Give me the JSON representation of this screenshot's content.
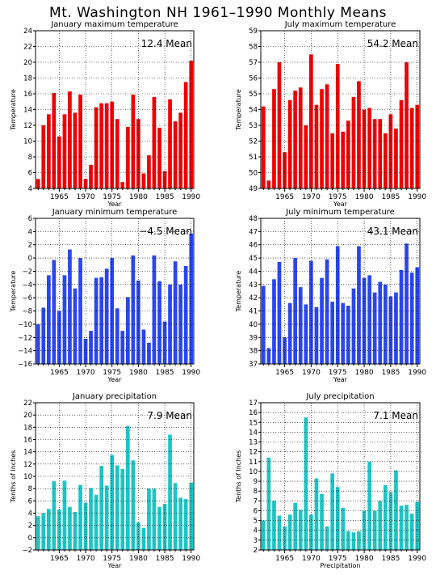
{
  "title": "Mt. Washington NH  1961–1990 Monthly Means",
  "colors": {
    "max": "#ee0000",
    "min": "#2a46ee",
    "precip": "#1ec4c4",
    "grid": "#000000"
  },
  "chart_data": [
    {
      "type": "bar",
      "title": "January maximum temperature",
      "xlabel": "Year",
      "ylabel": "Temperature",
      "mean_label": "12.4 Mean",
      "color": "#ee0000",
      "grid": true,
      "xlim": [
        1960.5,
        1990.5
      ],
      "ylim": [
        4,
        24
      ],
      "ytick_step": 2,
      "xticks": [
        1965,
        1970,
        1975,
        1980,
        1985,
        1990
      ],
      "years": [
        1961,
        1962,
        1963,
        1964,
        1965,
        1966,
        1967,
        1968,
        1969,
        1970,
        1971,
        1972,
        1973,
        1974,
        1975,
        1976,
        1977,
        1978,
        1979,
        1980,
        1981,
        1982,
        1983,
        1984,
        1985,
        1986,
        1987,
        1988,
        1989,
        1990
      ],
      "values": [
        5.2,
        12.0,
        13.4,
        16.1,
        10.6,
        13.4,
        16.3,
        13.6,
        15.9,
        5.2,
        7.0,
        14.3,
        14.8,
        14.8,
        15.0,
        12.8,
        4.8,
        11.8,
        15.9,
        12.8,
        5.9,
        8.2,
        15.6,
        11.7,
        6.2,
        15.3,
        12.5,
        13.6,
        17.5,
        20.2
      ]
    },
    {
      "type": "bar",
      "title": "July maximum temperature",
      "xlabel": "Year",
      "ylabel": "Temperature",
      "mean_label": "54.2 Mean",
      "color": "#ee0000",
      "grid": true,
      "xlim": [
        1960.5,
        1990.5
      ],
      "ylim": [
        49,
        59
      ],
      "ytick_step": 1,
      "xticks": [
        1965,
        1970,
        1975,
        1980,
        1985,
        1990
      ],
      "years": [
        1961,
        1962,
        1963,
        1964,
        1965,
        1966,
        1967,
        1968,
        1969,
        1970,
        1971,
        1972,
        1973,
        1974,
        1975,
        1976,
        1977,
        1978,
        1979,
        1980,
        1981,
        1982,
        1983,
        1984,
        1985,
        1986,
        1987,
        1988,
        1989,
        1990
      ],
      "values": [
        54.2,
        49.5,
        55.3,
        57.0,
        51.3,
        54.6,
        55.2,
        55.4,
        53.0,
        57.5,
        54.3,
        55.3,
        55.6,
        52.5,
        56.9,
        52.6,
        53.3,
        54.8,
        55.8,
        54.0,
        54.1,
        53.4,
        53.4,
        52.5,
        53.7,
        52.8,
        54.6,
        57.0,
        54.1,
        54.3
      ]
    },
    {
      "type": "bar",
      "title": "January minimum temperature",
      "xlabel": "Year",
      "ylabel": "Temperature",
      "mean_label": "−4.5 Mean",
      "color": "#2a46ee",
      "grid": true,
      "xlim": [
        1960.5,
        1990.5
      ],
      "ylim": [
        -16,
        6
      ],
      "ytick_step": 2,
      "xticks": [
        1965,
        1970,
        1975,
        1980,
        1985,
        1990
      ],
      "years": [
        1961,
        1962,
        1963,
        1964,
        1965,
        1966,
        1967,
        1968,
        1969,
        1970,
        1971,
        1972,
        1973,
        1974,
        1975,
        1976,
        1977,
        1978,
        1979,
        1980,
        1981,
        1982,
        1983,
        1984,
        1985,
        1986,
        1987,
        1988,
        1989,
        1990
      ],
      "values": [
        -10.0,
        -7.5,
        -2.6,
        -0.3,
        -8.0,
        -2.6,
        1.3,
        -4.6,
        0.0,
        -12.2,
        -11.0,
        -3.0,
        -2.9,
        -1.6,
        0.0,
        -7.6,
        -11.0,
        -5.9,
        0.4,
        -3.4,
        -10.8,
        -12.8,
        0.4,
        -3.5,
        -9.6,
        -4.0,
        -0.5,
        -4.0,
        -1.2,
        3.7
      ]
    },
    {
      "type": "bar",
      "title": "July minimum temperature",
      "xlabel": "Year",
      "ylabel": "Temperature",
      "mean_label": "43.1 Mean",
      "color": "#2a46ee",
      "grid": true,
      "xlim": [
        1960.5,
        1990.5
      ],
      "ylim": [
        37,
        48
      ],
      "ytick_step": 1,
      "xticks": [
        1965,
        1970,
        1975,
        1980,
        1985,
        1990
      ],
      "years": [
        1961,
        1962,
        1963,
        1964,
        1965,
        1966,
        1967,
        1968,
        1969,
        1970,
        1971,
        1972,
        1973,
        1974,
        1975,
        1976,
        1977,
        1978,
        1979,
        1980,
        1981,
        1982,
        1983,
        1984,
        1985,
        1986,
        1987,
        1988,
        1989,
        1990
      ],
      "values": [
        42.9,
        38.2,
        43.4,
        44.7,
        39.0,
        41.6,
        45.0,
        42.8,
        41.5,
        44.8,
        41.3,
        43.5,
        44.9,
        41.7,
        45.9,
        41.6,
        41.4,
        42.7,
        45.9,
        43.5,
        43.7,
        42.4,
        43.2,
        43.0,
        42.1,
        42.4,
        44.1,
        46.1,
        43.9,
        44.3
      ]
    },
    {
      "type": "bar",
      "title": "January precipitation",
      "xlabel": "Year",
      "ylabel": "Tenths of Inches",
      "mean_label": "7.9 Mean",
      "color": "#1ec4c4",
      "grid": true,
      "xlim": [
        1960.5,
        1990.5
      ],
      "ylim": [
        -2,
        22
      ],
      "ytick_step": 2,
      "xticks": [
        1965,
        1970,
        1975,
        1980,
        1985,
        1990
      ],
      "years": [
        1961,
        1962,
        1963,
        1964,
        1965,
        1966,
        1967,
        1968,
        1969,
        1970,
        1971,
        1972,
        1973,
        1974,
        1975,
        1976,
        1977,
        1978,
        1979,
        1980,
        1981,
        1982,
        1983,
        1984,
        1985,
        1986,
        1987,
        1988,
        1989,
        1990
      ],
      "values": [
        3.5,
        4.0,
        4.7,
        9.2,
        4.6,
        9.3,
        5.0,
        4.2,
        8.6,
        5.7,
        8.1,
        7.0,
        11.7,
        8.5,
        13.5,
        11.8,
        11.2,
        18.2,
        12.6,
        2.5,
        1.6,
        8.0,
        8.0,
        5.0,
        5.5,
        16.8,
        8.9,
        6.5,
        6.3,
        9.0
      ]
    },
    {
      "type": "bar",
      "title": "July precipitation",
      "xlabel": "Precipitation",
      "ylabel": "Tenths of Inches",
      "mean_label": "7.1 Mean",
      "color": "#1ec4c4",
      "grid": true,
      "xlim": [
        1960.5,
        1990.5
      ],
      "ylim": [
        2,
        17
      ],
      "ytick_step": 1,
      "xticks": [
        1965,
        1970,
        1975,
        1980,
        1985,
        1990
      ],
      "years": [
        1961,
        1962,
        1963,
        1964,
        1965,
        1966,
        1967,
        1968,
        1969,
        1970,
        1971,
        1972,
        1973,
        1974,
        1975,
        1976,
        1977,
        1978,
        1979,
        1980,
        1981,
        1982,
        1983,
        1984,
        1985,
        1986,
        1987,
        1988,
        1989,
        1990
      ],
      "values": [
        5.0,
        11.4,
        7.0,
        5.5,
        4.4,
        5.6,
        6.8,
        6.1,
        15.5,
        5.6,
        9.3,
        7.7,
        4.4,
        9.8,
        8.4,
        6.3,
        3.9,
        3.8,
        3.9,
        6.0,
        11.0,
        6.0,
        7.0,
        8.6,
        7.9,
        10.1,
        6.5,
        6.6,
        5.7,
        6.9
      ]
    }
  ]
}
